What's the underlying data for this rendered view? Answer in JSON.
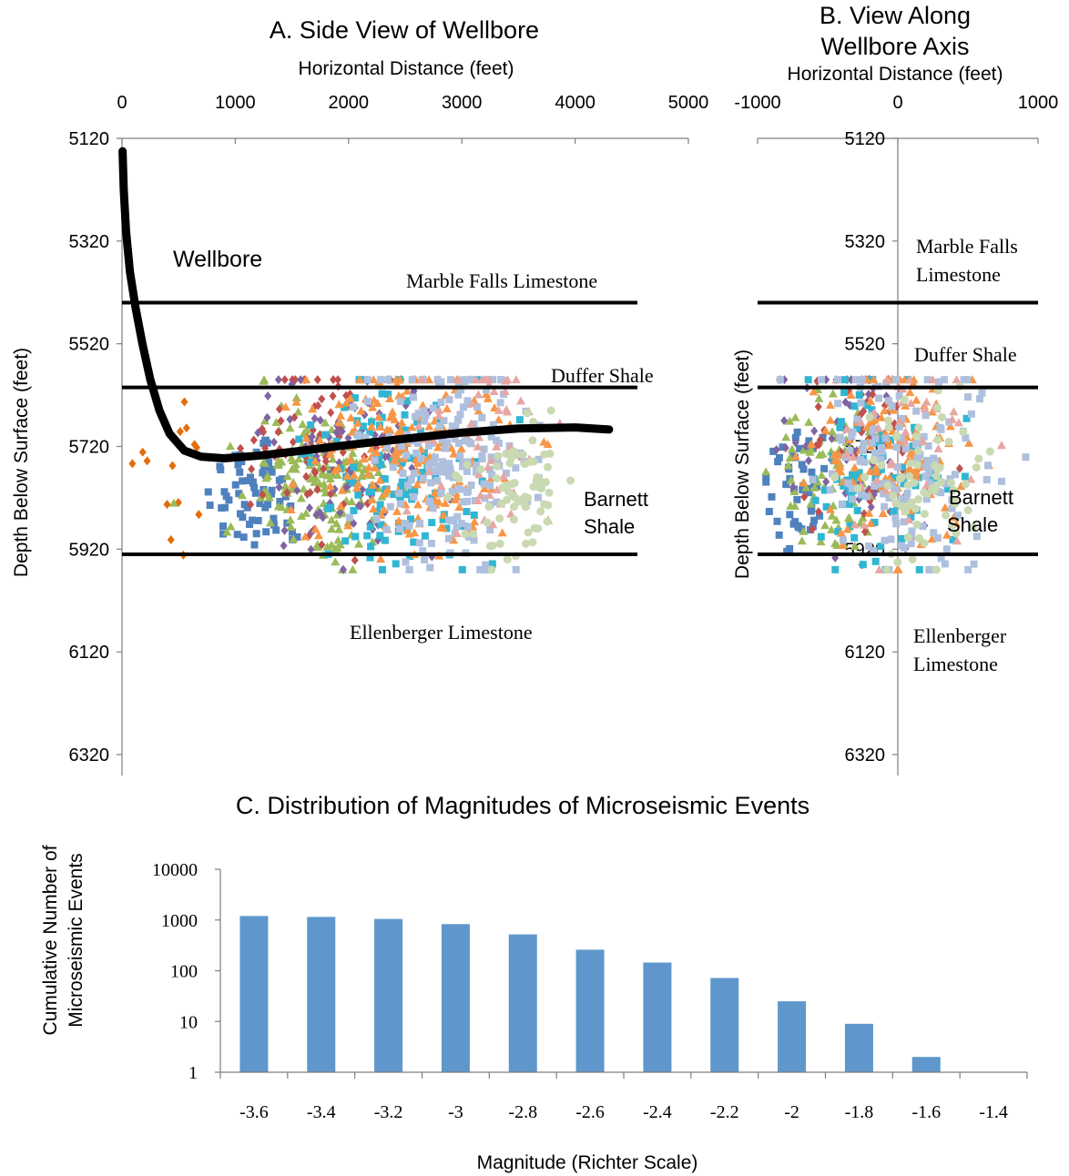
{
  "chart_data": [
    {
      "type": "scatter",
      "title": "A. Side View of Wellbore",
      "xlabel": "Horizontal Distance (feet)",
      "ylabel": "Depth Below Surface (feet)",
      "xlim": [
        0,
        5000
      ],
      "ylim": [
        5120,
        6320
      ],
      "y_inverted": true,
      "x_ticks": [
        "0",
        "1000",
        "2000",
        "3000",
        "4000",
        "5000"
      ],
      "y_ticks": [
        "5120",
        "5320",
        "5520",
        "5720",
        "5920",
        "6120",
        "6320"
      ],
      "formation_boundaries": [
        {
          "depth": 5440,
          "x_start": 0,
          "x_end": 4550
        },
        {
          "depth": 5605,
          "x_start": 0,
          "x_end": 4550
        },
        {
          "depth": 5930,
          "x_start": 0,
          "x_end": 4550
        }
      ],
      "formation_labels": {
        "marble_falls": "Marble Falls Limestone",
        "duffer": "Duffer Shale",
        "barnett_line1": "Barnett",
        "barnett_line2": "Shale",
        "ellenberger": "Ellenberger Limestone"
      },
      "wellbore_label": "Wellbore",
      "wellbore_path": [
        [
          5,
          5145
        ],
        [
          15,
          5220
        ],
        [
          35,
          5300
        ],
        [
          70,
          5380
        ],
        [
          120,
          5450
        ],
        [
          180,
          5520
        ],
        [
          250,
          5590
        ],
        [
          330,
          5650
        ],
        [
          420,
          5695
        ],
        [
          550,
          5728
        ],
        [
          700,
          5740
        ],
        [
          900,
          5743
        ],
        [
          1200,
          5738
        ],
        [
          1600,
          5728
        ],
        [
          2000,
          5717
        ],
        [
          2500,
          5705
        ],
        [
          3000,
          5693
        ],
        [
          3500,
          5685
        ],
        [
          4000,
          5683
        ],
        [
          4300,
          5687
        ]
      ],
      "event_clusters": [
        {
          "color": "#4F81BD",
          "marker": "square",
          "x_mean": 1200,
          "x_sd": 230,
          "y_mean": 5810,
          "y_sd": 60,
          "count": 70
        },
        {
          "color": "#E46C0A",
          "marker": "diamond",
          "x_mean": 420,
          "x_sd": 180,
          "y_mean": 5790,
          "y_sd": 90,
          "count": 14
        },
        {
          "color": "#9BBB59",
          "marker": "triangle",
          "x_mean": 1750,
          "x_sd": 320,
          "y_mean": 5790,
          "y_sd": 85,
          "count": 160
        },
        {
          "color": "#C0504D",
          "marker": "diamond",
          "x_mean": 1700,
          "x_sd": 260,
          "y_mean": 5720,
          "y_sd": 95,
          "count": 70
        },
        {
          "color": "#8064A2",
          "marker": "diamond",
          "x_mean": 2000,
          "x_sd": 380,
          "y_mean": 5740,
          "y_sd": 100,
          "count": 90
        },
        {
          "color": "#31B6D2",
          "marker": "square",
          "x_mean": 2450,
          "x_sd": 380,
          "y_mean": 5770,
          "y_sd": 90,
          "count": 120
        },
        {
          "color": "#F79646",
          "marker": "triangle",
          "x_mean": 2500,
          "x_sd": 420,
          "y_mean": 5730,
          "y_sd": 100,
          "count": 200
        },
        {
          "color": "#AFC0DE",
          "marker": "square",
          "x_mean": 2900,
          "x_sd": 350,
          "y_mean": 5750,
          "y_sd": 110,
          "count": 190
        },
        {
          "color": "#E6A6A4",
          "marker": "triangle",
          "x_mean": 3200,
          "x_sd": 300,
          "y_mean": 5700,
          "y_sd": 110,
          "count": 50
        },
        {
          "color": "#C9D9B2",
          "marker": "circle",
          "x_mean": 3500,
          "x_sd": 200,
          "y_mean": 5800,
          "y_sd": 80,
          "count": 70
        }
      ]
    },
    {
      "type": "scatter",
      "title_line1": "B. View Along",
      "title_line2": "Wellbore Axis",
      "xlabel": "Horizontal Distance (feet)",
      "ylabel": "Depth Below Surface (feet)",
      "xlim": [
        -1000,
        1000
      ],
      "ylim": [
        5120,
        6320
      ],
      "y_inverted": true,
      "x_ticks": [
        "-1000",
        "0",
        "1000"
      ],
      "y_ticks": [
        "5120",
        "5320",
        "5520",
        "5720",
        "5920",
        "6120",
        "6320"
      ],
      "formation_boundaries": [
        {
          "depth": 5440,
          "x_start": -1000,
          "x_end": 1000
        },
        {
          "depth": 5605,
          "x_start": -1000,
          "x_end": 1000
        },
        {
          "depth": 5930,
          "x_start": -1000,
          "x_end": 1000
        }
      ],
      "formation_labels": {
        "marble_falls_line1": "Marble Falls",
        "marble_falls_line2": "Limestone",
        "duffer": "Duffer Shale",
        "barnett_line1": "Barnett",
        "barnett_line2": "Shale",
        "ellenberger_line1": "Ellenberger",
        "ellenberger_line2": "Limestone"
      },
      "event_clusters": [
        {
          "color": "#4F81BD",
          "marker": "square",
          "x_mean": -700,
          "x_sd": 150,
          "y_mean": 5800,
          "y_sd": 60,
          "count": 50
        },
        {
          "color": "#9BBB59",
          "marker": "triangle",
          "x_mean": -450,
          "x_sd": 200,
          "y_mean": 5780,
          "y_sd": 80,
          "count": 80
        },
        {
          "color": "#8064A2",
          "marker": "diamond",
          "x_mean": -300,
          "x_sd": 250,
          "y_mean": 5720,
          "y_sd": 100,
          "count": 60
        },
        {
          "color": "#C0504D",
          "marker": "diamond",
          "x_mean": -200,
          "x_sd": 200,
          "y_mean": 5720,
          "y_sd": 100,
          "count": 50
        },
        {
          "color": "#31B6D2",
          "marker": "square",
          "x_mean": -150,
          "x_sd": 280,
          "y_mean": 5780,
          "y_sd": 90,
          "count": 80
        },
        {
          "color": "#F79646",
          "marker": "triangle",
          "x_mean": -50,
          "x_sd": 280,
          "y_mean": 5730,
          "y_sd": 100,
          "count": 130
        },
        {
          "color": "#AFC0DE",
          "marker": "square",
          "x_mean": 50,
          "x_sd": 300,
          "y_mean": 5750,
          "y_sd": 110,
          "count": 140
        },
        {
          "color": "#E6A6A4",
          "marker": "triangle",
          "x_mean": 100,
          "x_sd": 250,
          "y_mean": 5720,
          "y_sd": 110,
          "count": 40
        },
        {
          "color": "#C9D9B2",
          "marker": "circle",
          "x_mean": 150,
          "x_sd": 200,
          "y_mean": 5800,
          "y_sd": 80,
          "count": 70
        }
      ]
    },
    {
      "type": "bar",
      "title": "C. Distribution of Magnitudes of Microseismic Events",
      "xlabel": "Magnitude (Richter Scale)",
      "ylabel_line1": "Cumulative Number of",
      "ylabel_line2": "Microseismic Events",
      "y_scale": "log",
      "ylim": [
        1,
        10000
      ],
      "y_ticks": [
        "1",
        "10",
        "100",
        "1000",
        "10000"
      ],
      "categories": [
        "-3.6",
        "-3.4",
        "-3.2",
        "-3",
        "-2.8",
        "-2.6",
        "-2.4",
        "-2.2",
        "-2",
        "-1.8",
        "-1.6",
        "-1.4"
      ],
      "values": [
        1200,
        1150,
        1050,
        830,
        520,
        260,
        145,
        72,
        25,
        9,
        2,
        1
      ],
      "bar_color": "#5F97CC"
    }
  ]
}
